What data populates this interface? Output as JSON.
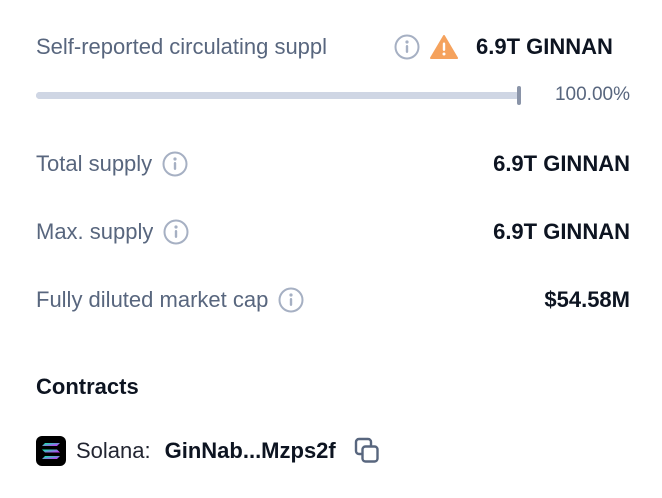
{
  "rows": {
    "circulating": {
      "label": "Self-reported circulating suppl",
      "value": "6.9T GINNAN",
      "info_icon": "info-icon",
      "warning_icon": "warning-icon"
    },
    "total": {
      "label": "Total supply",
      "value": "6.9T GINNAN",
      "info_icon": "info-icon"
    },
    "max": {
      "label": "Max. supply",
      "value": "6.9T GINNAN",
      "info_icon": "info-icon"
    },
    "fdmc": {
      "label": "Fully diluted market cap",
      "value": "$54.58M",
      "info_icon": "info-icon"
    }
  },
  "progress": {
    "percent_label": "100.00%",
    "fraction": 1.0
  },
  "contracts": {
    "title": "Contracts",
    "items": [
      {
        "chain": "Solana:",
        "address": "GinNab...Mzps2f",
        "logo_icon": "solana-logo-icon",
        "copy_icon": "copy-icon"
      }
    ]
  },
  "colors": {
    "label": "#58667e",
    "value": "#0d1421",
    "warning": "#f5a25d",
    "track": "#cfd6e4"
  }
}
